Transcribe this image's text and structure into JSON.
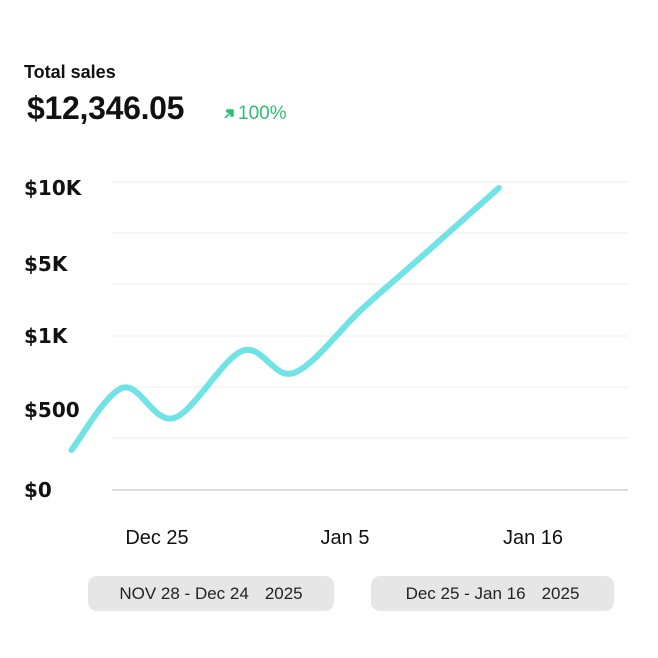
{
  "header": {
    "title": "Total sales",
    "total": "$12,346.05",
    "change": "100%",
    "change_color": "#2fbf71"
  },
  "chart_data": {
    "type": "line",
    "title": "",
    "xlabel": "",
    "ylabel": "",
    "y_scale": "non-linear (categorical tick spacing)",
    "y_ticks": [
      "$0",
      "$500",
      "$1K",
      "$5K",
      "$10K"
    ],
    "x_ticks": [
      "Dec 25",
      "Jan 5",
      "Jan 16"
    ],
    "grid": "horizontal",
    "legend": "none",
    "line_color": "#6fe3e6",
    "series": [
      {
        "points": [
          {
            "x": "Dec 20",
            "y": 250
          },
          {
            "x": "Dec 23",
            "y": 650
          },
          {
            "x": "Dec 26",
            "y": 450
          },
          {
            "x": "Dec 30",
            "y": 900
          },
          {
            "x": "Jan 2",
            "y": 750
          },
          {
            "x": "Jan 6",
            "y": 2500
          },
          {
            "x": "Jan 10",
            "y": 6000
          },
          {
            "x": "Jan 14",
            "y": 10000
          }
        ]
      }
    ]
  },
  "ranges": [
    {
      "label": "NOV 28 - Dec 24",
      "year": "2025"
    },
    {
      "label": "Dec 25 - Jan 16",
      "year": "2025"
    }
  ]
}
